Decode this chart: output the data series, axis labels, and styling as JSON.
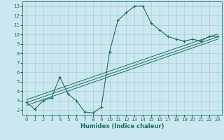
{
  "xlabel": "Humidex (Indice chaleur)",
  "bg_color": "#cce8ef",
  "grid_color": "#aacdd8",
  "line_color": "#1a6b6b",
  "xlim": [
    -0.5,
    23.5
  ],
  "ylim": [
    1.5,
    13.5
  ],
  "xticks": [
    0,
    1,
    2,
    3,
    4,
    5,
    6,
    7,
    8,
    9,
    10,
    11,
    12,
    13,
    14,
    15,
    16,
    17,
    18,
    19,
    20,
    21,
    22,
    23
  ],
  "yticks": [
    2,
    3,
    4,
    5,
    6,
    7,
    8,
    9,
    10,
    11,
    12,
    13
  ],
  "main_line_x": [
    0,
    1,
    2,
    3,
    4,
    5,
    6,
    7,
    8,
    9,
    10,
    11,
    12,
    13,
    14,
    15,
    16,
    17,
    18,
    19,
    20,
    21,
    22,
    23
  ],
  "main_line_y": [
    2.8,
    2.1,
    3.0,
    3.3,
    5.5,
    3.7,
    3.0,
    1.8,
    1.7,
    2.3,
    8.2,
    11.5,
    12.3,
    13.0,
    13.0,
    11.2,
    10.5,
    9.8,
    9.5,
    9.3,
    9.5,
    9.3,
    9.8,
    9.8
  ],
  "line1_y_start": 2.5,
  "line1_y_end": 9.5,
  "line2_y_start": 2.8,
  "line2_y_end": 9.75,
  "line3_y_start": 3.1,
  "line3_y_end": 10.05
}
